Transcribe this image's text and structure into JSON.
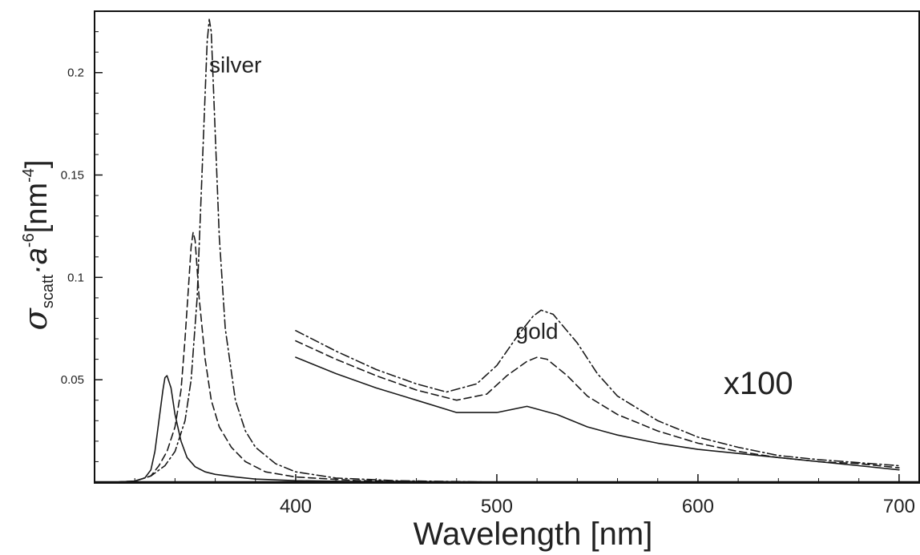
{
  "chart_data": {
    "type": "line",
    "title": "",
    "xlabel": "Wavelength [nm]",
    "ylabel": {
      "symbol": "σ",
      "subscript": "scatt",
      "middle": "·a",
      "superscript": "-6",
      "unit_open": "[nm",
      "unit_superscript": "-4",
      "unit_close": "]"
    },
    "xlim": [
      300,
      710
    ],
    "ylim": [
      0,
      0.23
    ],
    "x_ticks": [
      400,
      500,
      600,
      700
    ],
    "x_tick_labels": [
      "400",
      "500",
      "600",
      "700"
    ],
    "y_ticks": [
      0.05,
      0.1,
      0.15,
      0.2
    ],
    "y_tick_labels": [
      "0.05",
      "0.1",
      "0.15",
      "0.2"
    ],
    "grid": false,
    "annotations": [
      {
        "text": "silver",
        "x": 370,
        "y": 0.2
      },
      {
        "text": "gold",
        "x": 520,
        "y": 0.07
      },
      {
        "text": "x100",
        "x": 630,
        "y": 0.043
      }
    ],
    "series": [
      {
        "group": "silver",
        "style": "solid",
        "color": "#1a1a1a",
        "x": [
          310,
          320,
          325,
          328,
          330,
          332,
          334,
          335,
          336,
          338,
          340,
          343,
          346,
          350,
          355,
          360,
          370,
          380,
          400,
          430,
          460,
          500
        ],
        "y": [
          0.0,
          0.0005,
          0.002,
          0.006,
          0.015,
          0.03,
          0.045,
          0.051,
          0.052,
          0.046,
          0.033,
          0.02,
          0.012,
          0.0075,
          0.005,
          0.0038,
          0.0025,
          0.0015,
          0.0007,
          0.0003,
          0.0001,
          0.0
        ]
      },
      {
        "group": "silver",
        "style": "dashed",
        "color": "#1a1a1a",
        "x": [
          310,
          320,
          328,
          332,
          336,
          340,
          343,
          345,
          347,
          348,
          349,
          350,
          352,
          355,
          358,
          362,
          368,
          375,
          385,
          400,
          430,
          460,
          500
        ],
        "y": [
          0.0,
          0.0005,
          0.003,
          0.008,
          0.015,
          0.027,
          0.045,
          0.07,
          0.1,
          0.115,
          0.122,
          0.118,
          0.09,
          0.06,
          0.04,
          0.027,
          0.017,
          0.01,
          0.005,
          0.0025,
          0.0008,
          0.0003,
          0.0
        ]
      },
      {
        "group": "silver",
        "style": "dashdot",
        "color": "#1a1a1a",
        "x": [
          310,
          320,
          328,
          335,
          340,
          345,
          348,
          351,
          353,
          355,
          356,
          357,
          358,
          360,
          362,
          365,
          370,
          375,
          380,
          390,
          400,
          420,
          450,
          500
        ],
        "y": [
          0.0,
          0.0005,
          0.003,
          0.008,
          0.015,
          0.03,
          0.05,
          0.09,
          0.14,
          0.19,
          0.215,
          0.226,
          0.22,
          0.17,
          0.12,
          0.075,
          0.04,
          0.025,
          0.017,
          0.009,
          0.005,
          0.002,
          0.0007,
          0.0
        ]
      },
      {
        "group": "gold",
        "style": "solid",
        "color": "#1a1a1a",
        "x": [
          400,
          420,
          440,
          460,
          480,
          500,
          515,
          530,
          545,
          560,
          580,
          600,
          620,
          640,
          660,
          680,
          700
        ],
        "y": [
          0.061,
          0.053,
          0.046,
          0.04,
          0.034,
          0.034,
          0.037,
          0.033,
          0.027,
          0.023,
          0.019,
          0.016,
          0.014,
          0.012,
          0.01,
          0.008,
          0.006
        ]
      },
      {
        "group": "gold",
        "style": "dashed",
        "color": "#1a1a1a",
        "x": [
          400,
          420,
          440,
          460,
          480,
          495,
          505,
          515,
          520,
          525,
          535,
          545,
          560,
          580,
          600,
          620,
          640,
          660,
          680,
          700
        ],
        "y": [
          0.069,
          0.06,
          0.052,
          0.045,
          0.04,
          0.043,
          0.052,
          0.059,
          0.061,
          0.06,
          0.052,
          0.042,
          0.033,
          0.025,
          0.019,
          0.015,
          0.012,
          0.01,
          0.009,
          0.007
        ]
      },
      {
        "group": "gold",
        "style": "dashdot",
        "color": "#1a1a1a",
        "x": [
          400,
          420,
          440,
          460,
          475,
          490,
          500,
          510,
          518,
          522,
          528,
          540,
          550,
          560,
          580,
          600,
          620,
          640,
          660,
          680,
          700
        ],
        "y": [
          0.074,
          0.064,
          0.055,
          0.048,
          0.044,
          0.048,
          0.057,
          0.071,
          0.081,
          0.084,
          0.082,
          0.068,
          0.053,
          0.042,
          0.03,
          0.022,
          0.017,
          0.013,
          0.011,
          0.0095,
          0.008
        ]
      }
    ]
  }
}
